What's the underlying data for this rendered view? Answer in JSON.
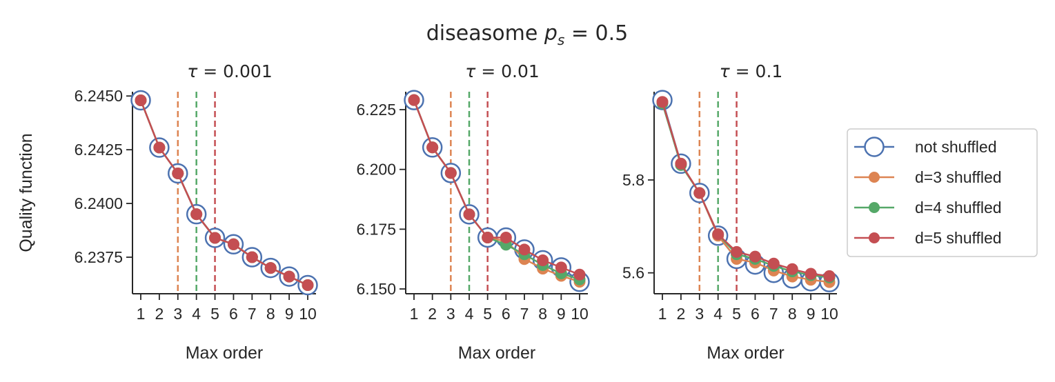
{
  "figure": {
    "title_prefix": "diseasome ",
    "title_math_var": "p",
    "title_math_sub": "s",
    "title_math_rest": " = 0.5"
  },
  "legend": {
    "placement": "right",
    "items": [
      {
        "label": "not shuffled",
        "color": "#4c72b0",
        "marker": "open-circle"
      },
      {
        "label": "d=3 shuffled",
        "color": "#dd8452",
        "marker": "filled-circle"
      },
      {
        "label": "d=4 shuffled",
        "color": "#55a868",
        "marker": "filled-circle"
      },
      {
        "label": "d=5 shuffled",
        "color": "#c44e52",
        "marker": "filled-circle"
      }
    ]
  },
  "chart_data": [
    {
      "type": "line",
      "title_var": "τ",
      "title_value": " = 0.001",
      "xlabel": "Max order",
      "ylabel": "Quality function",
      "x": [
        1,
        2,
        3,
        4,
        5,
        6,
        7,
        8,
        9,
        10
      ],
      "xticks": [
        "1",
        "2",
        "3",
        "4",
        "5",
        "6",
        "7",
        "8",
        "9",
        "10"
      ],
      "ylim": [
        6.2358,
        6.2452
      ],
      "yticks": [
        6.2375,
        6.24,
        6.2425,
        6.245
      ],
      "ytick_labels": [
        "6.2375",
        "6.2400",
        "6.2425",
        "6.2450"
      ],
      "vlines": [
        {
          "x": 3,
          "color": "#dd8452"
        },
        {
          "x": 4,
          "color": "#55a868"
        },
        {
          "x": 5,
          "color": "#c44e52"
        }
      ],
      "series": [
        {
          "name": "not shuffled",
          "values": [
            6.2448,
            6.2426,
            6.2414,
            6.2395,
            6.2384,
            6.2381,
            6.2375,
            6.237,
            6.2366,
            6.2362
          ]
        },
        {
          "name": "d=3 shuffled",
          "values": [
            6.2448,
            6.2426,
            6.2414,
            6.2395,
            6.2384,
            6.2381,
            6.2375,
            6.237,
            6.2366,
            6.2362
          ]
        },
        {
          "name": "d=4 shuffled",
          "values": [
            6.2448,
            6.2426,
            6.2414,
            6.2395,
            6.2384,
            6.2381,
            6.2375,
            6.237,
            6.2366,
            6.2362
          ]
        },
        {
          "name": "d=5 shuffled",
          "values": [
            6.2448,
            6.2426,
            6.2414,
            6.2395,
            6.2384,
            6.2381,
            6.2375,
            6.237,
            6.2366,
            6.2362
          ]
        }
      ]
    },
    {
      "type": "line",
      "title_var": "τ",
      "title_value": " = 0.01",
      "xlabel": "Max order",
      "ylabel": "",
      "x": [
        1,
        2,
        3,
        4,
        5,
        6,
        7,
        8,
        9,
        10
      ],
      "xticks": [
        "1",
        "2",
        "3",
        "4",
        "5",
        "6",
        "7",
        "8",
        "9",
        "10"
      ],
      "ylim": [
        6.148,
        6.2325
      ],
      "yticks": [
        6.15,
        6.175,
        6.2,
        6.225
      ],
      "ytick_labels": [
        "6.150",
        "6.175",
        "6.200",
        "6.225"
      ],
      "vlines": [
        {
          "x": 3,
          "color": "#dd8452"
        },
        {
          "x": 4,
          "color": "#55a868"
        },
        {
          "x": 5,
          "color": "#c44e52"
        }
      ],
      "series": [
        {
          "name": "not shuffled",
          "values": [
            6.229,
            6.2092,
            6.1985,
            6.1812,
            6.1715,
            6.1715,
            6.1665,
            6.162,
            6.159,
            6.153
          ]
        },
        {
          "name": "d=3 shuffled",
          "values": [
            6.229,
            6.2092,
            6.1985,
            6.1812,
            6.1715,
            6.17,
            6.1625,
            6.1585,
            6.1555,
            6.153
          ]
        },
        {
          "name": "d=4 shuffled",
          "values": [
            6.229,
            6.2092,
            6.1985,
            6.1812,
            6.1715,
            6.1685,
            6.1645,
            6.16,
            6.1565,
            6.154
          ]
        },
        {
          "name": "d=5 shuffled",
          "values": [
            6.229,
            6.2092,
            6.1985,
            6.1812,
            6.1715,
            6.1715,
            6.1665,
            6.162,
            6.159,
            6.156
          ]
        }
      ]
    },
    {
      "type": "line",
      "title_var": "τ",
      "title_value": " = 0.1",
      "xlabel": "Max order",
      "ylabel": "",
      "x": [
        1,
        2,
        3,
        4,
        5,
        6,
        7,
        8,
        9,
        10
      ],
      "xticks": [
        "1",
        "2",
        "3",
        "4",
        "5",
        "6",
        "7",
        "8",
        "9",
        "10"
      ],
      "ylim": [
        5.555,
        5.99
      ],
      "yticks": [
        5.6,
        5.8
      ],
      "ytick_labels": [
        "5.6",
        "5.8"
      ],
      "vlines": [
        {
          "x": 3,
          "color": "#dd8452"
        },
        {
          "x": 4,
          "color": "#55a868"
        },
        {
          "x": 5,
          "color": "#c44e52"
        }
      ],
      "series": [
        {
          "name": "not shuffled",
          "values": [
            5.972,
            5.835,
            5.772,
            5.68,
            5.63,
            5.618,
            5.6,
            5.588,
            5.582,
            5.58
          ]
        },
        {
          "name": "d=3 shuffled",
          "values": [
            5.968,
            5.835,
            5.772,
            5.68,
            5.63,
            5.622,
            5.605,
            5.592,
            5.585,
            5.58
          ]
        },
        {
          "name": "d=4 shuffled",
          "values": [
            5.965,
            5.832,
            5.772,
            5.683,
            5.64,
            5.63,
            5.615,
            5.603,
            5.595,
            5.59
          ]
        },
        {
          "name": "d=5 shuffled",
          "values": [
            5.968,
            5.835,
            5.772,
            5.683,
            5.645,
            5.635,
            5.62,
            5.608,
            5.598,
            5.593
          ]
        }
      ]
    }
  ]
}
